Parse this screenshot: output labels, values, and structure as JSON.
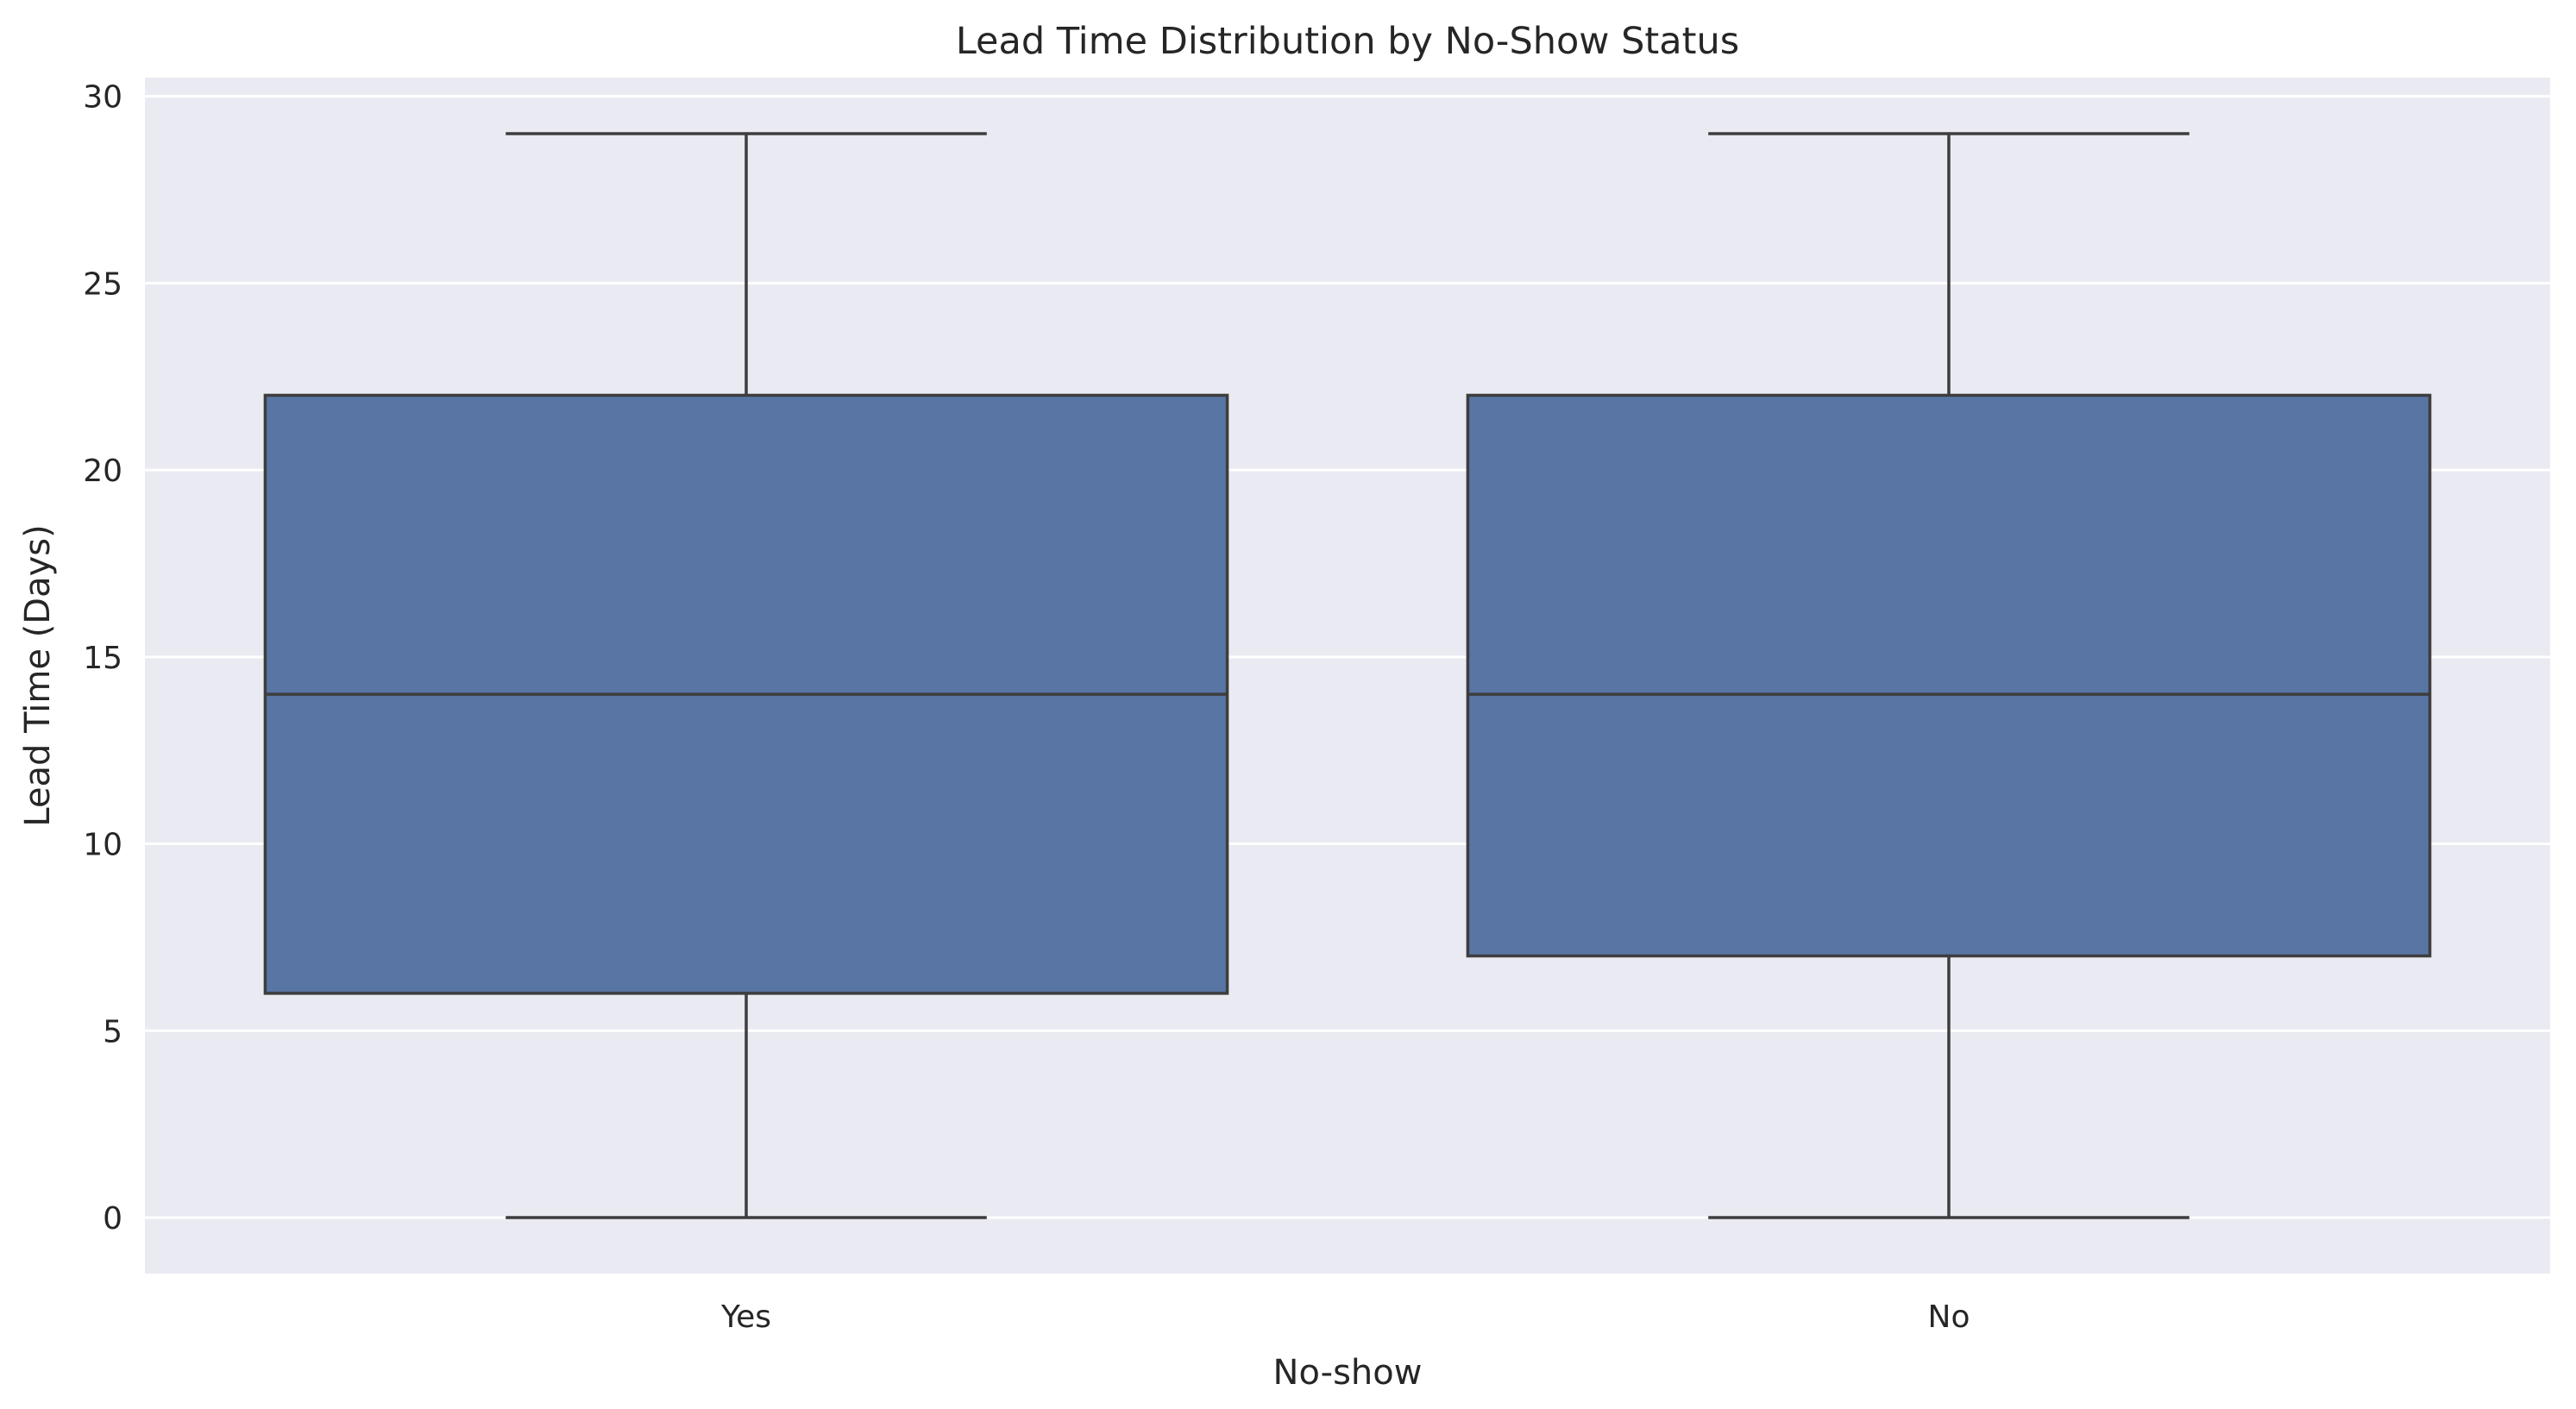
{
  "chart_data": {
    "type": "box",
    "title": "Lead Time Distribution by No-Show Status",
    "xlabel": "No-show",
    "ylabel": "Lead Time (Days)",
    "categories": [
      "Yes",
      "No"
    ],
    "boxes": [
      {
        "category": "Yes",
        "whisker_low": 0,
        "q1": 6,
        "median": 14,
        "q3": 22,
        "whisker_high": 29
      },
      {
        "category": "No",
        "whisker_low": 0,
        "q1": 7,
        "median": 14,
        "q3": 22,
        "whisker_high": 29
      }
    ],
    "ylim": [
      -1.5,
      30.5
    ],
    "yticks": [
      0,
      5,
      10,
      15,
      20,
      25,
      30
    ],
    "grid": true,
    "colors": {
      "box_fill": "#5875a4",
      "line": "#3d3d3d",
      "plot_background": "#eaeaf2",
      "grid": "#ffffff",
      "text": "#262626"
    }
  }
}
